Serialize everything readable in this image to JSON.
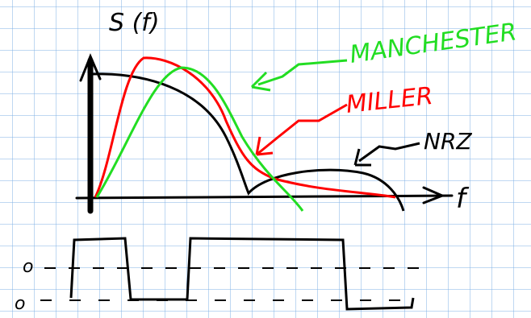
{
  "labels": {
    "axis_y": "S (f)",
    "axis_x": "f",
    "manchester": "MANCHESTER",
    "miller": "MILLER",
    "nrz": "NRZ",
    "level_high": "o",
    "level_low": "o"
  }
}
